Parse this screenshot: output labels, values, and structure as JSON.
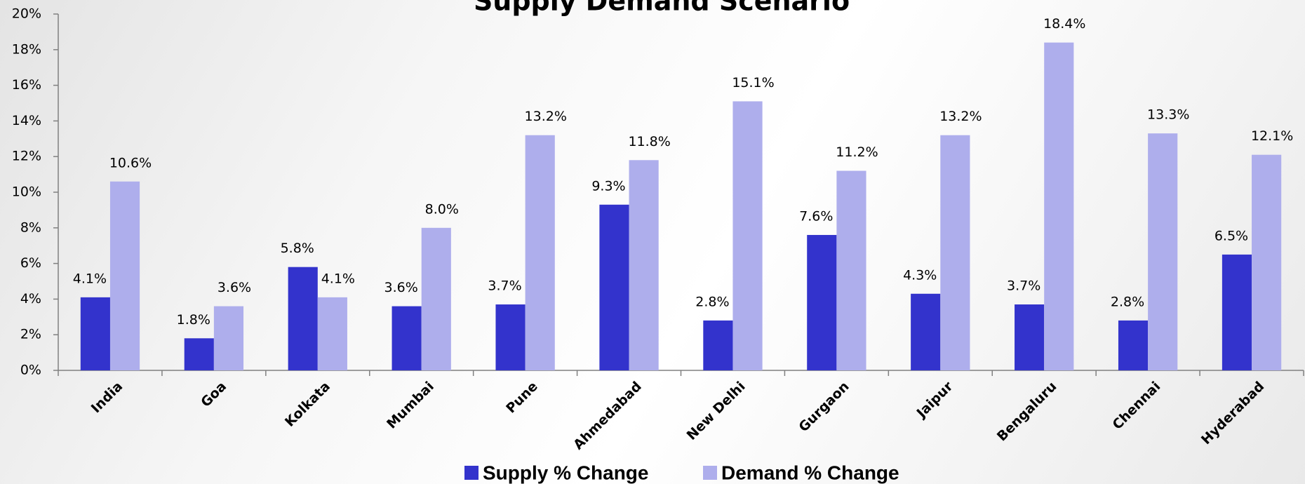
{
  "chart_data": {
    "type": "bar",
    "title": "Supply Demand Scenario",
    "categories": [
      "India",
      "Goa",
      "Kolkata",
      "Mumbai",
      "Pune",
      "Ahmedabad",
      "New Delhi",
      "Gurgaon",
      "Jaipur",
      "Bengaluru",
      "Chennai",
      "Hyderabad"
    ],
    "series": [
      {
        "name": "Supply % Change",
        "color": "#3333cc",
        "values": [
          4.1,
          1.8,
          5.8,
          3.6,
          3.7,
          9.3,
          2.8,
          7.6,
          4.3,
          3.7,
          2.8,
          6.5
        ],
        "value_labels": [
          "4.1%",
          "1.8%",
          "5.8%",
          "3.6%",
          "3.7%",
          "9.3%",
          "2.8%",
          "7.6%",
          "4.3%",
          "3.7%",
          "2.8%",
          "6.5%"
        ]
      },
      {
        "name": "Demand % Change",
        "color": "#aeaeec",
        "values": [
          10.6,
          3.6,
          4.1,
          8.0,
          13.2,
          11.8,
          15.1,
          11.2,
          13.2,
          18.4,
          13.3,
          12.1
        ],
        "value_labels": [
          "10.6%",
          "3.6%",
          "4.1%",
          "8.0%",
          "13.2%",
          "11.8%",
          "15.1%",
          "11.2%",
          "13.2%",
          "18.4%",
          "13.3%",
          "12.1%"
        ]
      }
    ],
    "ylim": [
      0,
      20
    ],
    "yticks": [
      {
        "value": 0,
        "label": "0%"
      },
      {
        "value": 2,
        "label": "2%"
      },
      {
        "value": 4,
        "label": "4%"
      },
      {
        "value": 6,
        "label": "6%"
      },
      {
        "value": 8,
        "label": "8%"
      },
      {
        "value": 10,
        "label": "10%"
      },
      {
        "value": 12,
        "label": "12%"
      },
      {
        "value": 14,
        "label": "14%"
      },
      {
        "value": 16,
        "label": "16%"
      },
      {
        "value": 18,
        "label": "18%"
      },
      {
        "value": 20,
        "label": "20%"
      }
    ],
    "grid": false,
    "legend": "bottom"
  }
}
